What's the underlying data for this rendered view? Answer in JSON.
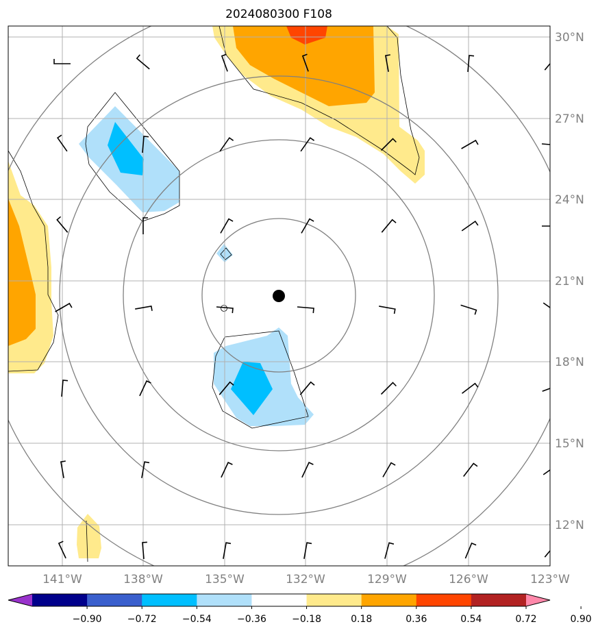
{
  "map": {
    "title": "2024080300 F108",
    "lat_labels": [
      "30°N",
      "27°N",
      "24°N",
      "21°N",
      "18°N",
      "15°N",
      "12°N"
    ],
    "lon_labels": [
      "141°W",
      "138°W",
      "135°W",
      "132°W",
      "129°W",
      "126°W",
      "123°W"
    ],
    "center_marker": "storm-center-dot"
  },
  "colorbar": {
    "labels": [
      "−0.90",
      "−0.72",
      "−0.54",
      "−0.36",
      "−0.18",
      "0.18",
      "0.36",
      "0.54",
      "0.72",
      "0.90"
    ],
    "colors": {
      "under": "#9932cc",
      "bins": [
        "#00008b",
        "#3a5fcd",
        "#00bfff",
        "#b0e0fa",
        "#ffffff",
        "#ffea8c",
        "#ffa500",
        "#ff4500",
        "#b22222"
      ],
      "over": "#ff88aa"
    }
  },
  "fill_colors": {
    "light_yellow": "#ffea8c",
    "orange": "#ffa500",
    "red_orange": "#ff4500",
    "light_blue": "#b0e0fa",
    "deep_sky_blue": "#00bfff"
  }
}
